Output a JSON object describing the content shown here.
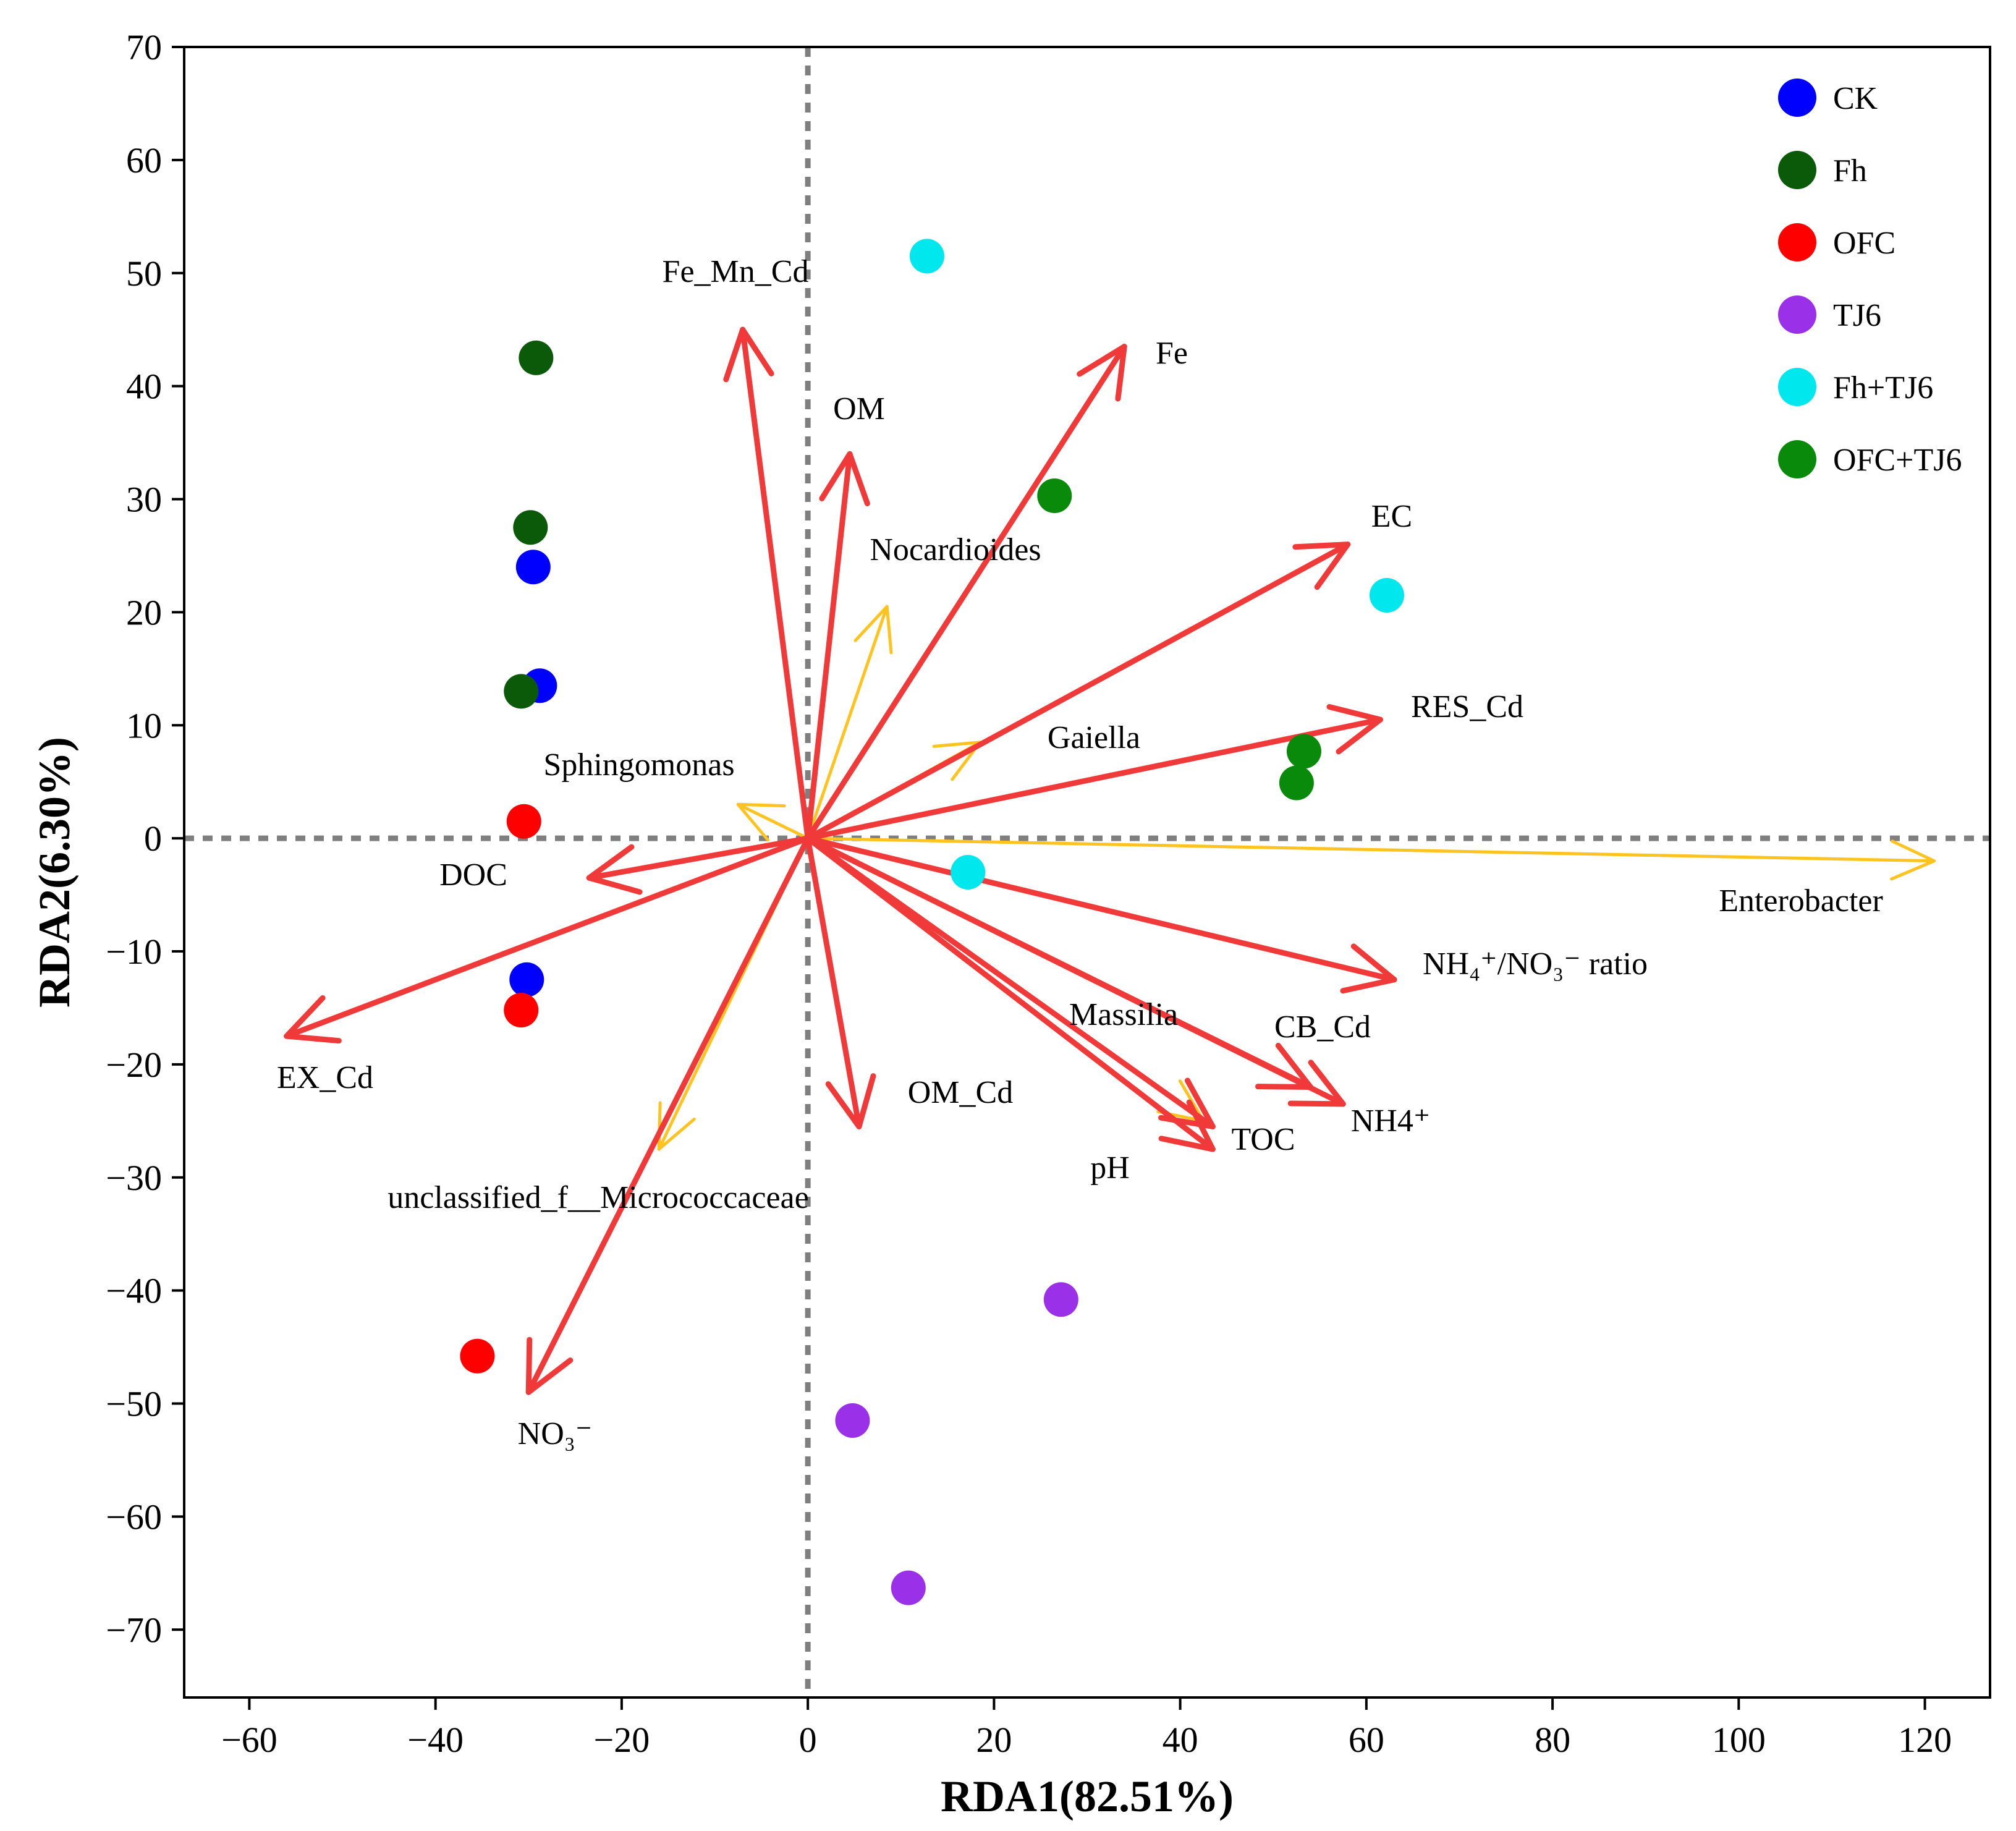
{
  "chart_data": {
    "type": "scatter",
    "subtype": "rda-biplot",
    "xlabel": "RDA1(82.51%)",
    "ylabel": "RDA2(6.30%)",
    "xlim": [
      -67,
      127
    ],
    "ylim": [
      -76,
      70
    ],
    "xticks": [
      -60,
      -40,
      -20,
      0,
      20,
      40,
      60,
      80,
      100,
      120
    ],
    "yticks": [
      70,
      60,
      50,
      40,
      30,
      20,
      10,
      0,
      -10,
      -20,
      -30,
      -40,
      -50,
      -60,
      -70
    ],
    "legend_position": "top-right",
    "groups": [
      {
        "name": "CK",
        "color": "#0000ff",
        "points": [
          [
            -29.5,
            24
          ],
          [
            -28.8,
            13.5
          ],
          [
            -30.2,
            -12.5
          ]
        ]
      },
      {
        "name": "Fh",
        "color": "#0a5a0a",
        "points": [
          [
            -29.2,
            42.5
          ],
          [
            -29.8,
            27.5
          ],
          [
            -30.8,
            13
          ]
        ]
      },
      {
        "name": "OFC",
        "color": "#ff0000",
        "points": [
          [
            -30.5,
            1.5
          ],
          [
            -30.8,
            -15.2
          ],
          [
            -35.5,
            -45.8
          ]
        ]
      },
      {
        "name": "TJ6",
        "color": "#9a30e8",
        "points": [
          [
            27.2,
            -40.8
          ],
          [
            4.8,
            -51.5
          ],
          [
            10.8,
            -66.3
          ]
        ]
      },
      {
        "name": "Fh+TJ6",
        "color": "#00e8ee",
        "points": [
          [
            12.8,
            51.5
          ],
          [
            62.2,
            21.5
          ],
          [
            17.2,
            -3
          ]
        ]
      },
      {
        "name": "OFC+TJ6",
        "color": "#0a8a0a",
        "points": [
          [
            26.5,
            30.3
          ],
          [
            53.3,
            7.7
          ],
          [
            52.5,
            4.9
          ]
        ]
      }
    ],
    "env_vectors": [
      {
        "name": "Fe_Mn_Cd",
        "end": [
          -7,
          45
        ]
      },
      {
        "name": "OM",
        "end": [
          4.5,
          34
        ]
      },
      {
        "name": "Fe",
        "end": [
          34,
          43.5
        ]
      },
      {
        "name": "EC",
        "end": [
          58,
          26
        ]
      },
      {
        "name": "RES_Cd",
        "end": [
          61.5,
          10.5
        ]
      },
      {
        "name": "DOC",
        "end": [
          -23.5,
          -3.5
        ]
      },
      {
        "name": "EX_Cd",
        "end": [
          -56,
          -17.5
        ]
      },
      {
        "name": "NO₃⁻",
        "end": [
          -30,
          -49
        ]
      },
      {
        "name": "OM_Cd",
        "end": [
          5.5,
          -25.5
        ]
      },
      {
        "name": "NH₄⁺/NO₃⁻ ratio",
        "end": [
          63,
          -12.5
        ]
      },
      {
        "name": "CB_Cd",
        "end": [
          54,
          -22
        ]
      },
      {
        "name": "NH4⁺",
        "end": [
          57.5,
          -23.5
        ]
      },
      {
        "name": "TOC",
        "end": [
          43.5,
          -27.5
        ]
      },
      {
        "name": "pH",
        "end": [
          43.5,
          -25.5
        ]
      }
    ],
    "species_vectors": [
      {
        "name": "Nocardioides",
        "end": [
          8.5,
          20.5
        ]
      },
      {
        "name": "Gaiella",
        "end": [
          18.5,
          8.5
        ]
      },
      {
        "name": "Sphingomonas",
        "end": [
          -7.5,
          3
        ]
      },
      {
        "name": "Enterobacter",
        "end": [
          121,
          -2
        ]
      },
      {
        "name": "unclassified_f__Micrococcaceae",
        "end": [
          -16,
          -27.5
        ]
      },
      {
        "name": "Massilia",
        "end": [
          42.5,
          -25
        ]
      }
    ]
  }
}
